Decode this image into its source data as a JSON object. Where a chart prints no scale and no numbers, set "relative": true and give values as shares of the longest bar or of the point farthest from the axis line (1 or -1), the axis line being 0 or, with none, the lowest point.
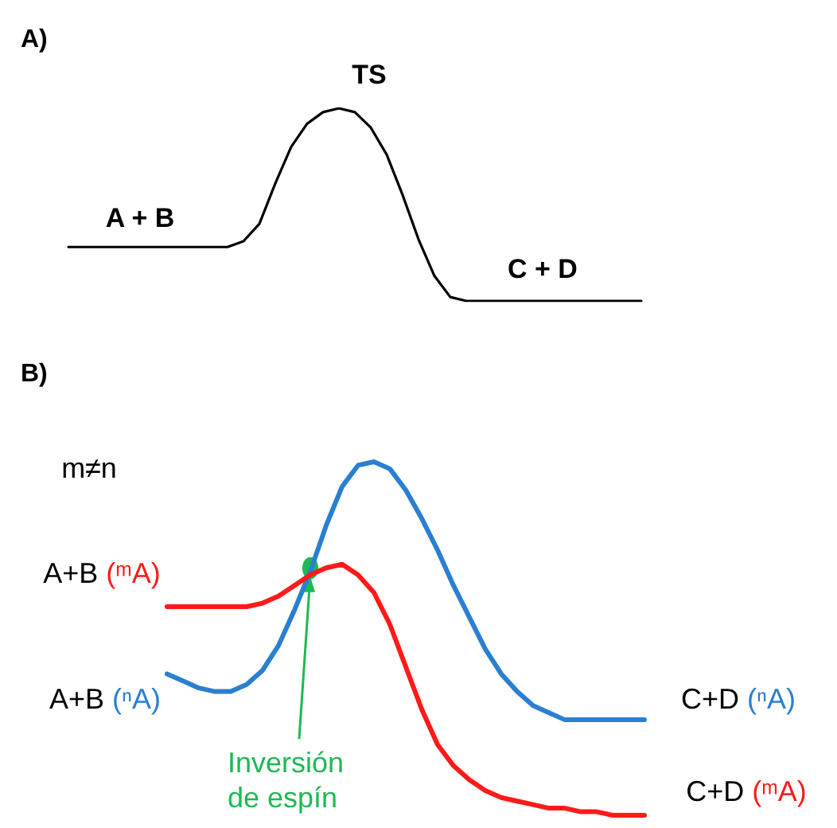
{
  "chart_data": [
    {
      "type": "line",
      "title": "A)",
      "relative": true,
      "marker": "none",
      "categories": [
        null,
        null,
        null,
        null,
        null,
        null,
        null,
        null,
        null,
        null,
        null,
        null,
        null,
        null,
        null,
        null,
        null,
        null,
        null,
        null,
        null,
        null,
        null,
        null,
        null,
        null,
        null,
        null,
        null,
        null,
        null,
        null,
        null,
        null,
        null,
        null,
        null
      ],
      "series": [
        {
          "color": "#000000",
          "values": [
            0.28,
            0.28,
            0.28,
            0.28,
            0.28,
            0.28,
            0.28,
            0.28,
            0.28,
            0.28,
            0.28,
            0.31,
            0.4,
            0.61,
            0.8,
            0.92,
            0.98,
            1,
            0.98,
            0.9,
            0.76,
            0.55,
            0.32,
            0.13,
            0.02,
            0,
            0,
            0,
            0,
            0,
            0,
            0,
            0,
            0,
            0,
            0,
            0
          ]
        }
      ],
      "annotations": [
        "A + B",
        "TS",
        "C + D"
      ]
    },
    {
      "type": "line",
      "title": "B)",
      "relative": true,
      "marker": "none",
      "categories": [
        null,
        null,
        null,
        null,
        null,
        null,
        null,
        null,
        null,
        null,
        null,
        null,
        null,
        null,
        null,
        null,
        null,
        null,
        null,
        null,
        null,
        null,
        null,
        null,
        null,
        null,
        null,
        null,
        null,
        null,
        null
      ],
      "series": [
        {
          "color": "#2a7fd0",
          "values": [
            0.4,
            0.38,
            0.36,
            0.35,
            0.35,
            0.37,
            0.41,
            0.48,
            0.58,
            0.69,
            0.82,
            0.93,
            0.99,
            1,
            0.98,
            0.92,
            0.84,
            0.75,
            0.65,
            0.56,
            0.47,
            0.4,
            0.35,
            0.31,
            0.29,
            0.27,
            0.27,
            0.27,
            0.27,
            0.27,
            0.27
          ]
        },
        {
          "color": "#ff1a1a",
          "values": [
            0.59,
            0.59,
            0.59,
            0.59,
            0.59,
            0.59,
            0.6,
            0.62,
            0.65,
            0.68,
            0.7,
            0.71,
            0.68,
            0.63,
            0.54,
            0.42,
            0.3,
            0.2,
            0.14,
            0.1,
            0.07,
            0.05,
            0.04,
            0.03,
            0.02,
            0.02,
            0.01,
            0.01,
            0,
            0,
            0
          ]
        }
      ],
      "annotations": [
        "m≠n",
        "A+B (ᵐA)",
        "A+B (ⁿA)",
        "C+D (ⁿA)",
        "C+D (ᵐA)",
        "Inversión de espín"
      ]
    }
  ]
}
